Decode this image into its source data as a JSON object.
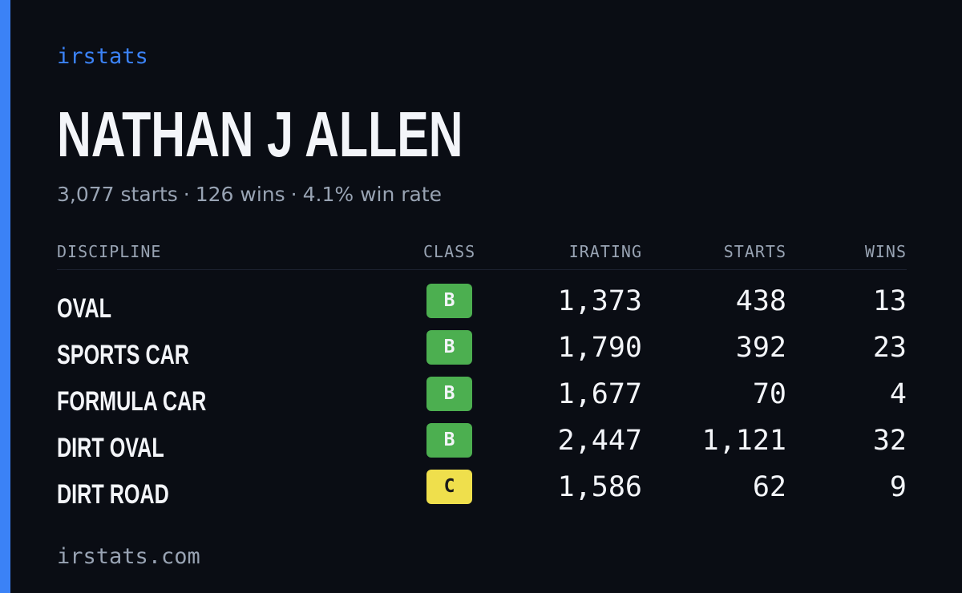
{
  "brand": "irstats",
  "driver": {
    "name": "NATHAN J ALLEN"
  },
  "summary": {
    "starts": "3,077 starts",
    "wins": "126 wins",
    "win_rate": "4.1% win rate",
    "separator": "·"
  },
  "table": {
    "headers": {
      "discipline": "DISCIPLINE",
      "class": "CLASS",
      "irating": "IRATING",
      "starts": "STARTS",
      "wins": "WINS"
    },
    "rows": [
      {
        "discipline": "OVAL",
        "class": "B",
        "irating": "1,373",
        "starts": "438",
        "wins": "13"
      },
      {
        "discipline": "SPORTS CAR",
        "class": "B",
        "irating": "1,790",
        "starts": "392",
        "wins": "23"
      },
      {
        "discipline": "FORMULA CAR",
        "class": "B",
        "irating": "1,677",
        "starts": "70",
        "wins": "4"
      },
      {
        "discipline": "DIRT OVAL",
        "class": "B",
        "irating": "2,447",
        "starts": "1,121",
        "wins": "32"
      },
      {
        "discipline": "DIRT ROAD",
        "class": "C",
        "irating": "1,586",
        "starts": "62",
        "wins": "9"
      }
    ]
  },
  "footer": "irstats.com",
  "colors": {
    "accent": "#3b82f6",
    "class_b": "#4caf50",
    "class_c": "#efdf4c",
    "background": "#0a0d14"
  }
}
